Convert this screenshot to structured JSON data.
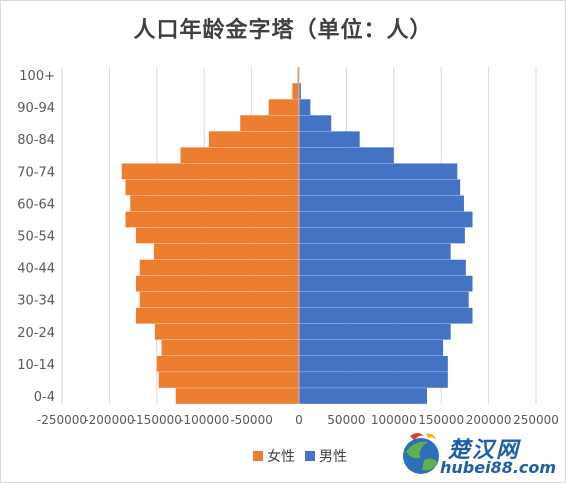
{
  "chart_data": {
    "type": "bar",
    "orientation": "horizontal",
    "title": "人口年龄金字塔（单位：人）",
    "categories": [
      "0-4",
      "5-9",
      "10-14",
      "15-19",
      "20-24",
      "25-29",
      "30-34",
      "35-39",
      "40-44",
      "45-49",
      "50-54",
      "55-59",
      "60-64",
      "65-69",
      "70-74",
      "75-79",
      "80-84",
      "85-89",
      "90-94",
      "95-99",
      "100+"
    ],
    "y_tick_labels": [
      "0-4",
      "10-14",
      "20-24",
      "30-34",
      "40-44",
      "50-54",
      "60-64",
      "70-74",
      "80-84",
      "90-94",
      "100+"
    ],
    "series": [
      {
        "name": "女性",
        "color": "#ed7d31",
        "values": [
          -130000,
          -148000,
          -150000,
          -145000,
          -152000,
          -172000,
          -168000,
          -172000,
          -168000,
          -153000,
          -172000,
          -183000,
          -178000,
          -183000,
          -187000,
          -125000,
          -95000,
          -62000,
          -32000,
          -7000,
          -1500
        ]
      },
      {
        "name": "男性",
        "color": "#4472c4",
        "values": [
          135000,
          157000,
          157000,
          152000,
          160000,
          183000,
          179000,
          183000,
          176000,
          160000,
          175000,
          183000,
          174000,
          170000,
          167000,
          100000,
          64000,
          34000,
          12000,
          2000,
          500
        ]
      }
    ],
    "x_tick_labels": [
      "-250000",
      "-200000",
      "-150000",
      "-100000",
      "-50000",
      "0",
      "50000",
      "100000",
      "150000",
      "200000",
      "250000"
    ],
    "xlim": [
      -250000,
      250000
    ],
    "grid": "vertical",
    "legend": "bottom"
  },
  "legend": {
    "female_label": "女性",
    "male_label": "男性"
  },
  "watermark": {
    "site_cn": "楚汉网",
    "site_en": "hubei88.com"
  }
}
